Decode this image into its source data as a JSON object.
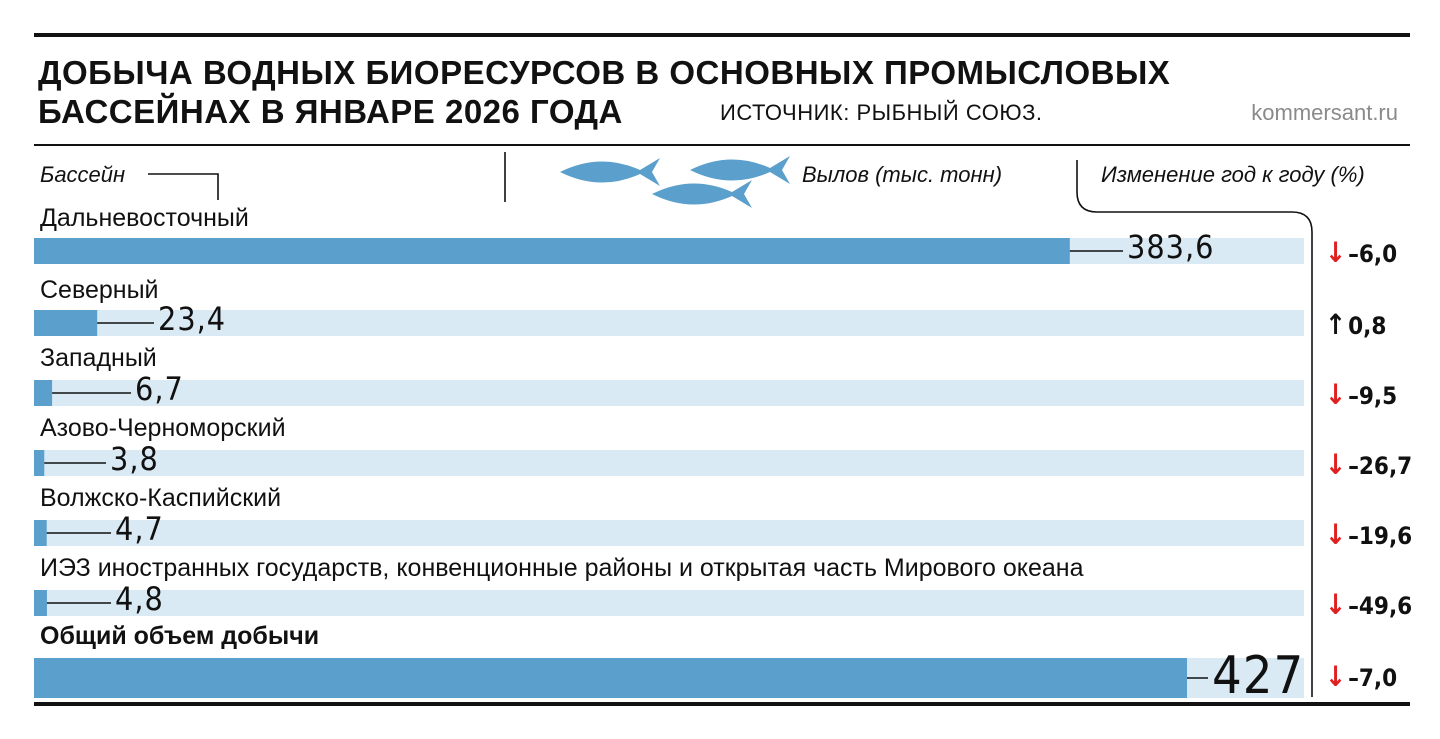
{
  "header": {
    "title_line1": "ДОБЫЧА ВОДНЫХ БИОРЕСУРСОВ В ОСНОВНЫХ ПРОМЫСЛОВЫХ",
    "title_line2": "БАССЕЙНАХ В ЯНВАРЕ 2026 ГОДА",
    "source": "ИСТОЧНИК: РЫБНЫЙ СОЮЗ.",
    "site": "kommersant.ru"
  },
  "columns": {
    "basin": "Бассейн",
    "catch": "Вылов (тыс. тонн)",
    "change": "Изменение год к году (%)"
  },
  "colors": {
    "bar": "#5ba0cc",
    "track": "#d9eaf5",
    "fish": "#5ba0cc",
    "down": "#e02020",
    "up": "#111111"
  },
  "chart_data": {
    "type": "bar",
    "orientation": "horizontal",
    "categories": [
      "Дальневосточный",
      "Северный",
      "Западный",
      "Азово-Черноморский",
      "Волжско-Каспийский",
      "ИЭЗ иностранных государств, конвенционные районы и открытая часть Мирового океана",
      "Общий объем добычи"
    ],
    "values": [
      383.6,
      23.4,
      6.7,
      3.8,
      4.7,
      4.8,
      427
    ],
    "value_labels": [
      "383,6",
      "23,4",
      "6,7",
      "3,8",
      "4,7",
      "4,8",
      "427"
    ],
    "change": [
      -6.0,
      0.8,
      -9.5,
      -26.7,
      -19.6,
      -49.6,
      -7.0
    ],
    "change_labels": [
      "–6,0",
      "0,8",
      "–9,5",
      "–26,7",
      "–19,6",
      "–49,6",
      "–7,0"
    ],
    "xlim": [
      0,
      427
    ],
    "grid": false,
    "legend": "none"
  }
}
